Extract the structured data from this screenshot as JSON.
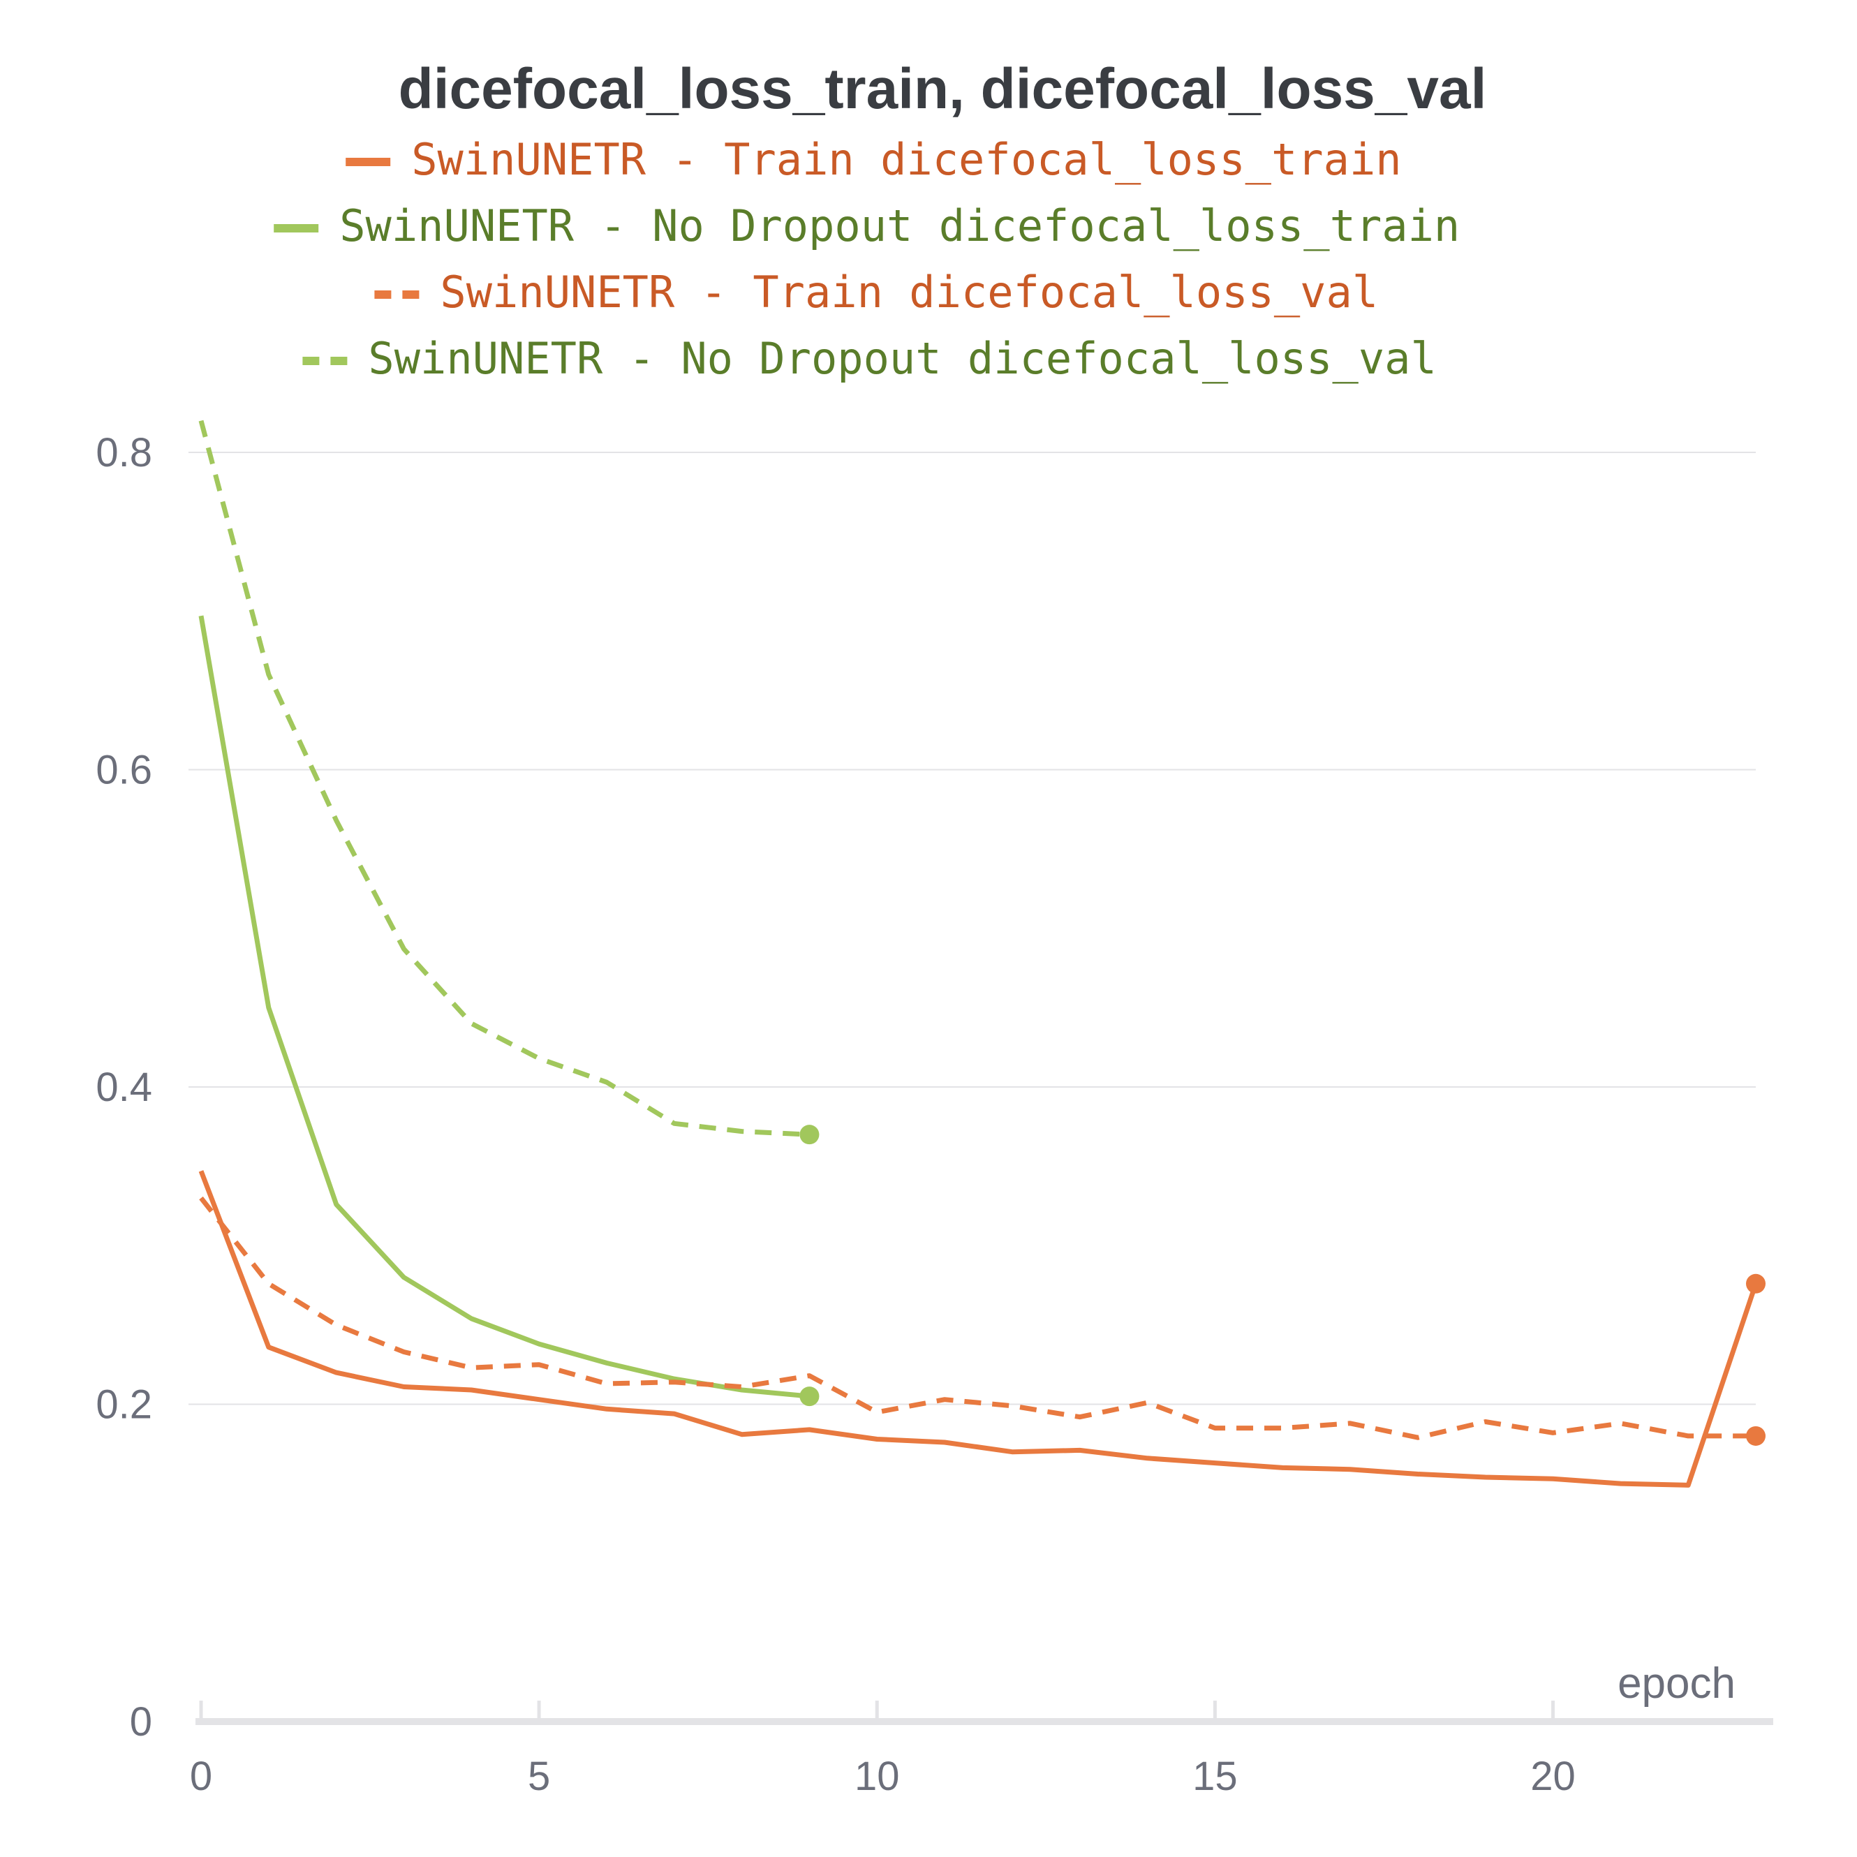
{
  "chart_data": {
    "type": "line",
    "title": "dicefocal_loss_train, dicefocal_loss_val",
    "xlabel": "epoch",
    "ylabel": "",
    "xlim": [
      0,
      23
    ],
    "ylim": [
      0,
      0.8
    ],
    "xticks": [
      0,
      5,
      10,
      15,
      20
    ],
    "yticks": [
      0,
      0.2,
      0.4,
      0.6,
      0.8
    ],
    "ytick_labels": [
      "0",
      "0.2",
      "0.4",
      "0.6",
      "0.8"
    ],
    "grid": true,
    "legend_position": "top-center",
    "series": [
      {
        "name": "SwinUNETR - Train dicefocal_loss_train",
        "color": "#e8793f",
        "text_color": "#c95a26",
        "dash": "solid",
        "x": [
          0,
          1,
          2,
          3,
          4,
          5,
          6,
          7,
          8,
          9,
          10,
          11,
          12,
          13,
          14,
          15,
          16,
          17,
          18,
          19,
          20,
          21,
          22,
          23
        ],
        "values": [
          0.347,
          0.236,
          0.22,
          0.211,
          0.209,
          0.203,
          0.197,
          0.194,
          0.181,
          0.184,
          0.178,
          0.176,
          0.17,
          0.171,
          0.166,
          0.163,
          0.16,
          0.159,
          0.156,
          0.154,
          0.153,
          0.15,
          0.149,
          0.276
        ]
      },
      {
        "name": "SwinUNETR - No Dropout dicefocal_loss_train",
        "color": "#a1c75c",
        "text_color": "#5a7d2a",
        "dash": "solid",
        "x": [
          0,
          1,
          2,
          3,
          4,
          5,
          6,
          7,
          8,
          9
        ],
        "values": [
          0.697,
          0.45,
          0.326,
          0.28,
          0.254,
          0.238,
          0.226,
          0.216,
          0.209,
          0.205
        ]
      },
      {
        "name": "SwinUNETR - Train dicefocal_loss_val",
        "color": "#e8793f",
        "text_color": "#c95a26",
        "dash": "dashed",
        "x": [
          0,
          1,
          2,
          3,
          4,
          5,
          6,
          7,
          8,
          9,
          10,
          11,
          12,
          13,
          14,
          15,
          16,
          17,
          18,
          19,
          20,
          21,
          22,
          23
        ],
        "values": [
          0.33,
          0.276,
          0.25,
          0.233,
          0.223,
          0.225,
          0.213,
          0.214,
          0.211,
          0.218,
          0.195,
          0.203,
          0.199,
          0.192,
          0.201,
          0.185,
          0.185,
          0.188,
          0.179,
          0.189,
          0.182,
          0.188,
          0.18,
          0.18
        ]
      },
      {
        "name": "SwinUNETR - No Dropout dicefocal_loss_val",
        "color": "#a1c75c",
        "text_color": "#5a7d2a",
        "dash": "dashed",
        "x": [
          0,
          1,
          2,
          3,
          4,
          5,
          6,
          7,
          8,
          9
        ],
        "values": [
          0.82,
          0.66,
          0.568,
          0.487,
          0.44,
          0.418,
          0.403,
          0.377,
          0.372,
          0.37
        ]
      }
    ]
  }
}
